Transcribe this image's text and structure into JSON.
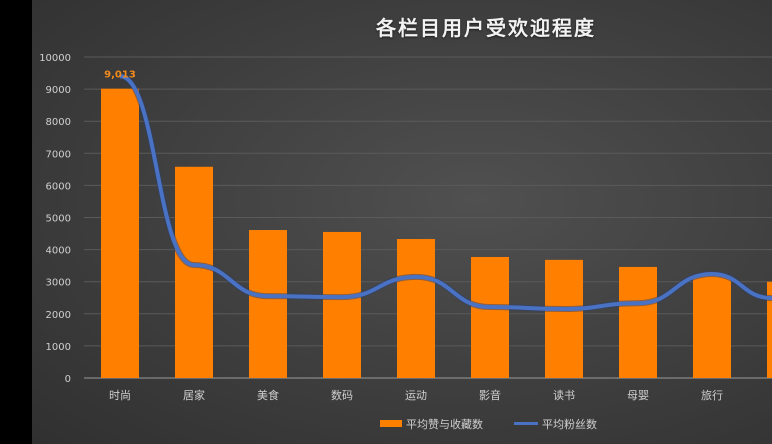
{
  "chart_data": {
    "type": "bar",
    "title": "各栏目用户受欢迎程度",
    "xlabel": "",
    "ylabel": "",
    "ylim": [
      0,
      10000
    ],
    "yticks": [
      0,
      1000,
      2000,
      3000,
      4000,
      5000,
      6000,
      7000,
      8000,
      9000,
      10000
    ],
    "grid": true,
    "legend_position": "bottom",
    "categories": [
      "时尚",
      "居家",
      "美食",
      "数码",
      "运动",
      "影音",
      "读书",
      "母婴",
      "旅行",
      ""
    ],
    "series": [
      {
        "name": "平均赞与收藏数",
        "type": "bar",
        "color": "#ff7f00",
        "values": [
          9013,
          6580,
          4610,
          4550,
          4330,
          3770,
          3680,
          3460,
          3180,
          3000
        ]
      },
      {
        "name": "平均粉丝数",
        "type": "line",
        "color": "#4a72c4",
        "values": [
          9400,
          3520,
          2550,
          2520,
          3150,
          2210,
          2150,
          2330,
          3240,
          2490
        ]
      }
    ],
    "annotations": [
      {
        "category": "时尚",
        "series": "平均赞与收藏数",
        "text": "9,013"
      }
    ]
  },
  "ui": {
    "title": "各栏目用户受欢迎程度",
    "data_label": "9,013",
    "legend": [
      "平均赞与收藏数",
      "平均粉丝数"
    ]
  }
}
